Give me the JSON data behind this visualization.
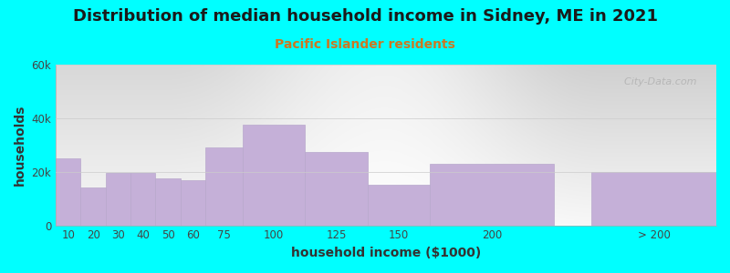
{
  "title": "Distribution of median household income in Sidney, ME in 2021",
  "subtitle": "Pacific Islander residents",
  "xlabel": "household income ($1000)",
  "ylabel": "households",
  "background_color": "#00FFFF",
  "plot_bg_top_color": "#d8f0d0",
  "plot_bg_bottom_color": "#f8fff8",
  "bar_color": "#c5b0d8",
  "bar_edge_color": "#b8a8cc",
  "categories": [
    "10",
    "20",
    "30",
    "40",
    "50",
    "60",
    "75",
    "100",
    "125",
    "150",
    "200",
    "> 200"
  ],
  "values": [
    25000,
    14000,
    19500,
    19500,
    17500,
    17000,
    29000,
    37500,
    27500,
    15000,
    23000,
    20000
  ],
  "bar_starts": [
    0,
    10,
    20,
    30,
    40,
    50,
    60,
    75,
    100,
    125,
    150,
    215
  ],
  "bar_widths": [
    10,
    10,
    10,
    10,
    10,
    10,
    15,
    25,
    25,
    25,
    50,
    50
  ],
  "xlim": [
    0,
    265
  ],
  "ylim": [
    0,
    60000
  ],
  "yticks": [
    0,
    20000,
    40000,
    60000
  ],
  "ytick_labels": [
    "0",
    "20k",
    "40k",
    "60k"
  ],
  "title_fontsize": 13,
  "subtitle_fontsize": 10,
  "axis_label_fontsize": 10,
  "tick_fontsize": 8.5,
  "title_color": "#1a1a1a",
  "subtitle_color": "#cc7722",
  "watermark_text": "  City-Data.com",
  "watermark_color": "#aaaaaa"
}
